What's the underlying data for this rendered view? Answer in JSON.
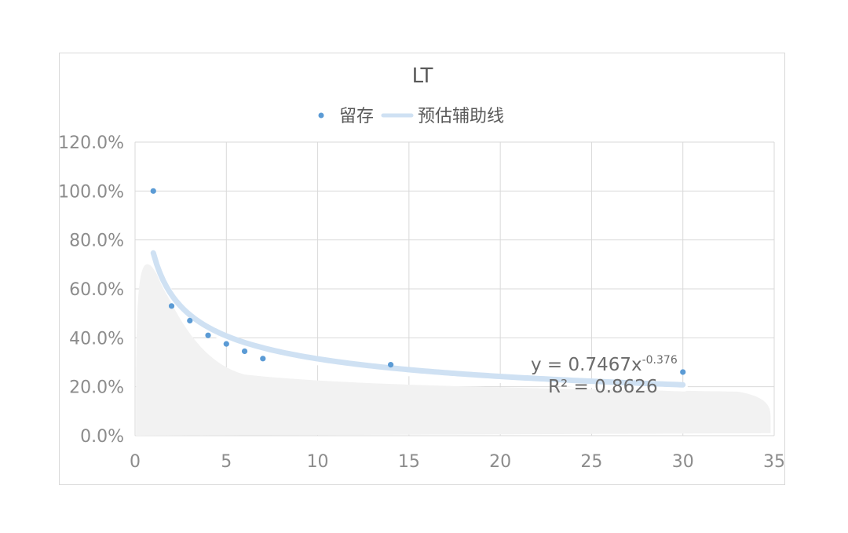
{
  "chart_data": {
    "type": "scatter",
    "title": "LT",
    "legend": {
      "placement": "top",
      "entries": [
        {
          "label": "留存",
          "kind": "marker",
          "color": "#5b9bd5"
        },
        {
          "label": "预估辅助线",
          "kind": "line",
          "color": "#cfe1f3"
        }
      ]
    },
    "series": [
      {
        "name": "留存",
        "color": "#5b9bd5",
        "x": [
          1,
          2,
          3,
          4,
          5,
          6,
          7,
          14,
          30
        ],
        "y": [
          1.0,
          0.53,
          0.47,
          0.41,
          0.375,
          0.345,
          0.315,
          0.29,
          0.26
        ]
      }
    ],
    "trendline": {
      "name": "预估辅助线",
      "type": "power",
      "a": 0.7467,
      "b": -0.376,
      "x_range": [
        1,
        30
      ],
      "color": "#cfe1f3"
    },
    "equation_text": {
      "base": "y = 0.7467x",
      "exponent": "-0.376",
      "r2": "R² = 0.8626"
    },
    "xlim": [
      0,
      35
    ],
    "ylim": [
      0,
      1.2
    ],
    "x_ticks": [
      "0",
      "5",
      "10",
      "15",
      "20",
      "25",
      "30",
      "35"
    ],
    "y_ticks": [
      "0.0%",
      "20.0%",
      "40.0%",
      "60.0%",
      "80.0%",
      "100.0%",
      "120.0%"
    ],
    "grid": true,
    "shadow_area_color": "#f2f2f2"
  }
}
